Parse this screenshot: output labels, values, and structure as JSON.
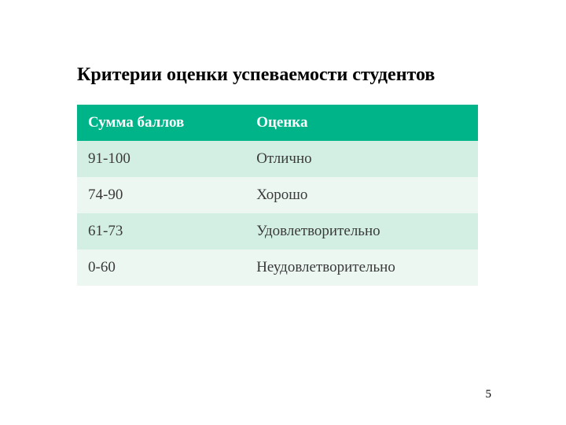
{
  "page": {
    "title": "Критерии оценки успеваемости студентов",
    "number": "5"
  },
  "table": {
    "type": "table",
    "header_bg": "#00b48a",
    "header_color": "#ffffff",
    "row_bg_even": "#d3efe4",
    "row_bg_odd": "#ecf7f2",
    "row_color": "#3a3a3a",
    "columns": [
      "Сумма баллов",
      "Оценка"
    ],
    "rows": [
      [
        "91-100",
        "Отлично"
      ],
      [
        "74-90",
        "Хорошо"
      ],
      [
        "61-73",
        "Удовлетворительно"
      ],
      [
        "0-60",
        "Неудовлетворительно"
      ]
    ],
    "col_widths": [
      "42%",
      "58%"
    ],
    "title_fontsize": 24,
    "cell_fontsize": 19
  }
}
